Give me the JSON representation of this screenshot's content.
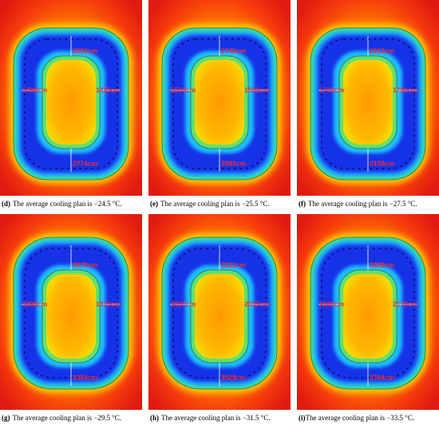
{
  "panels": [
    {
      "tag": "(d)",
      "caption": "The average cooling plan is −24.5 °C.",
      "top": "2653cm",
      "left": "1498cm",
      "right": "1425cm",
      "bottom": "2774cm"
    },
    {
      "tag": "(e)",
      "caption": "The average cooling plan is −25.5 °C.",
      "top": "2745cm",
      "left": "1534cm",
      "right": "1562cm",
      "bottom": "2893cm"
    },
    {
      "tag": "(f)",
      "caption": "The average cooling plan is −27.5 °C.",
      "top": "2912cm",
      "left": "1701cm",
      "right": "1781cm",
      "bottom": "3159cm"
    },
    {
      "tag": "(g)",
      "caption": "The average cooling plan is −29.5 °C.",
      "top": "3070cm",
      "left": "1898cm",
      "right": "1873cm",
      "bottom": "3354cm"
    },
    {
      "tag": "(h)",
      "caption": "The average cooling plan is −31.5 °C.",
      "top": "3221cm",
      "left": "2037cm",
      "right": "2023cm",
      "bottom": "3528cm"
    },
    {
      "tag": "(i)",
      "caption": "The average cooling plan is −33.5 °C.",
      "top": "3359cm",
      "left": "2180cm",
      "right": "2179cm",
      "bottom": "3704cm"
    }
  ]
}
